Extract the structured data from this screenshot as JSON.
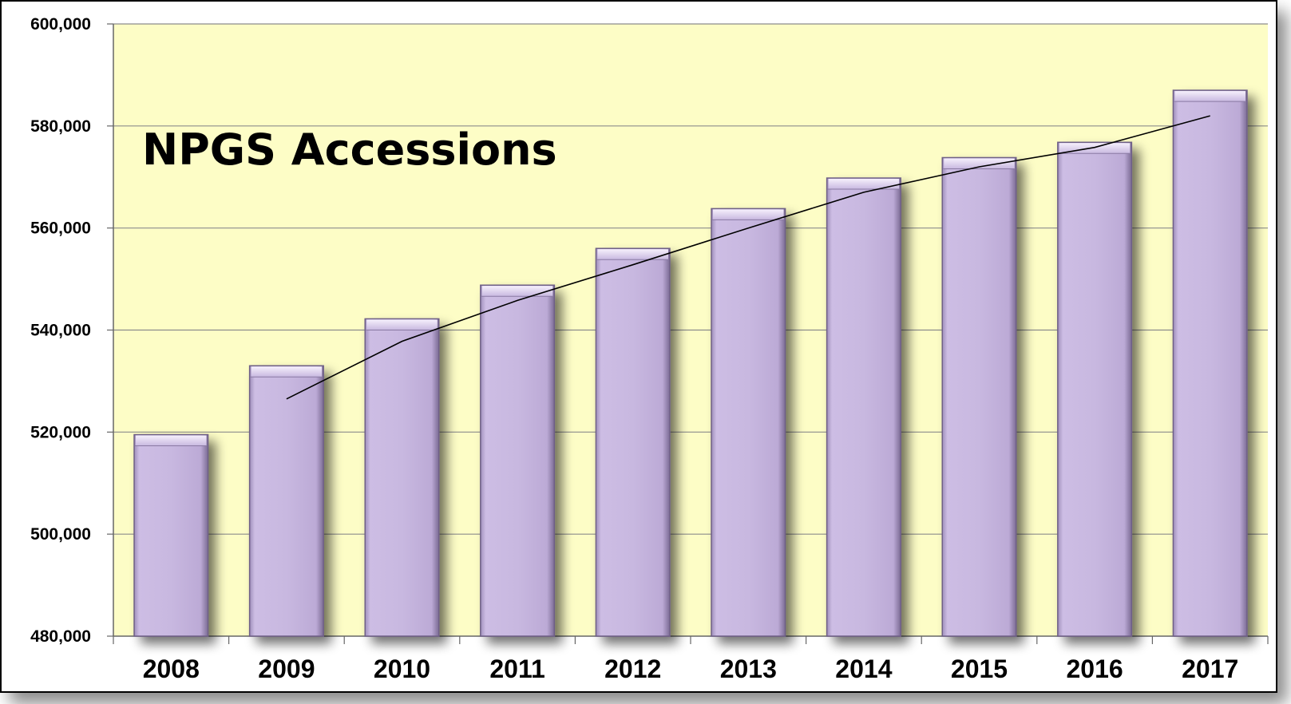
{
  "chart_data": {
    "type": "bar",
    "title": "NPGS Accessions",
    "xlabel": "",
    "ylabel": "",
    "categories": [
      "2008",
      "2009",
      "2010",
      "2011",
      "2012",
      "2013",
      "2014",
      "2015",
      "2016",
      "2017"
    ],
    "values": [
      519500,
      533000,
      542200,
      548800,
      556000,
      563800,
      569800,
      573800,
      576800,
      587000
    ],
    "trendline": {
      "type": "line",
      "from_category": "2009",
      "values": [
        526500,
        537800,
        545800,
        552800,
        560000,
        567000,
        572000,
        575800,
        582000
      ]
    },
    "ylim": [
      480000,
      600000
    ],
    "y_ticks": [
      480000,
      500000,
      520000,
      540000,
      560000,
      580000,
      600000
    ],
    "y_tick_labels": [
      "480,000",
      "500,000",
      "520,000",
      "540,000",
      "560,000",
      "580,000",
      "600,000"
    ],
    "grid": true,
    "legend": "none",
    "colors": {
      "plot_background": "#fdfdc6",
      "bar_fill": "#c8b8e0",
      "bar_highlight": "#eee6f8",
      "bar_edge": "#6e5f86",
      "gridline": "#8c8c8c",
      "trendline": "#000000",
      "frame": "#000000"
    }
  }
}
